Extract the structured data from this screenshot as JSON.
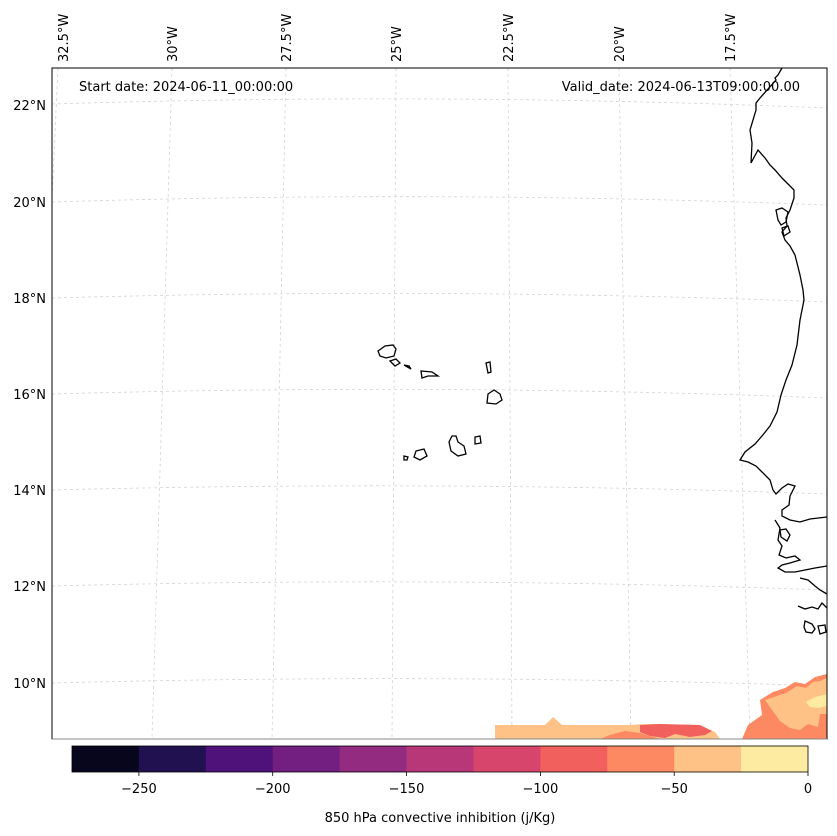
{
  "map": {
    "start_date": "Start date: 2024-06-11_00:00:00",
    "valid_date": "Valid_date: 2024-06-13T09:00:00.00",
    "lon_labels": [
      "32.5°W",
      "30°W",
      "27.5°W",
      "25°W",
      "22.5°W",
      "20°W",
      "17.5°W"
    ],
    "lat_labels": [
      "22°N",
      "20°N",
      "18°N",
      "16°N",
      "14°N",
      "12°N",
      "10°N"
    ],
    "gridlines": true,
    "coastline_color": "#000000",
    "extent": {
      "lon_min": -32.8,
      "lon_max": -16.0,
      "lat_min": 8.9,
      "lat_max": 22.7
    }
  },
  "colorbar": {
    "label": "850 hPa convective inhibition (j/Kg)",
    "tick_labels": [
      "−250",
      "−200",
      "−150",
      "−100",
      "−50",
      "0"
    ],
    "levels": [
      -275,
      -250,
      -225,
      -200,
      -175,
      -150,
      -125,
      -100,
      -75,
      -50,
      -25,
      0
    ],
    "colors": [
      "#07061c",
      "#221150",
      "#4f127b",
      "#721f81",
      "#932b80",
      "#b73779",
      "#d8456c",
      "#f1605d",
      "#fc8961",
      "#fec287",
      "#feeba2"
    ],
    "orientation": "horizontal",
    "placement": "bottom"
  }
}
